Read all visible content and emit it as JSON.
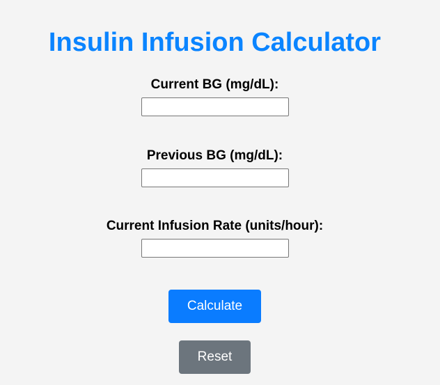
{
  "title": "Insulin Infusion Calculator",
  "fields": {
    "current_bg": {
      "label": "Current BG (mg/dL):",
      "value": "",
      "placeholder": ""
    },
    "previous_bg": {
      "label": "Previous BG (mg/dL):",
      "value": "",
      "placeholder": ""
    },
    "infusion_rate": {
      "label": "Current Infusion Rate (units/hour):",
      "value": "",
      "placeholder": ""
    }
  },
  "buttons": {
    "calculate": "Calculate",
    "reset": "Reset"
  },
  "colors": {
    "title": "#0a84ff",
    "calculate_button": "#0a7cff",
    "reset_button": "#6c757d",
    "background": "#f4f4f4"
  }
}
